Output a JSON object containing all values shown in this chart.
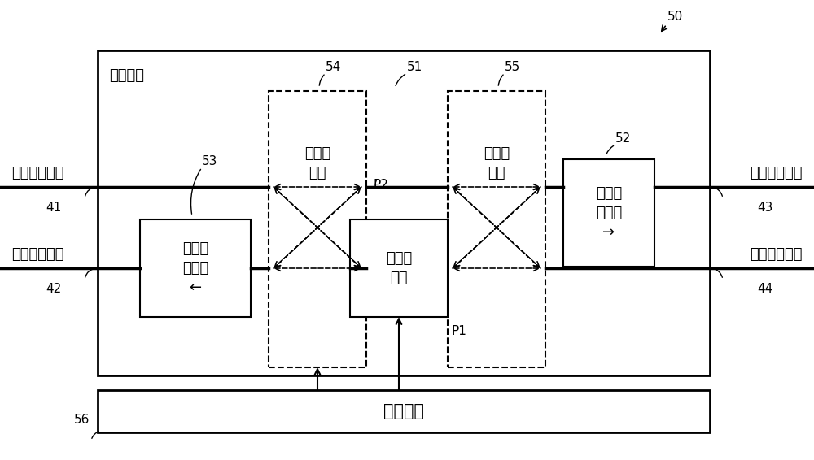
{
  "bg_color": "#ffffff",
  "line_color": "#000000",
  "fig_width": 10.0,
  "fig_height": 5.66,
  "label_50": "50",
  "label_56": "56",
  "label_54": "54",
  "label_55": "55",
  "label_51": "51",
  "label_52": "52",
  "label_53": "53",
  "label_41": "41",
  "label_42": "42",
  "label_43": "43",
  "label_44": "44",
  "label_P1": "P1",
  "label_P2": "P2",
  "text_amplifier": "光放大器",
  "text_control": "控制单元",
  "text_sw1": "第一光\n开关",
  "text_sw2": "第二光\n开关",
  "text_opt_elem": "光放大\n元件",
  "text_tx_iso": "发送侧\n隔离器\n→",
  "text_rx_iso": "接收侧\n隔离器\n←",
  "text_tx_in": "发送侧输入部",
  "text_tx_out": "发送侧输出部",
  "text_rx_out": "接收侧输出部",
  "text_rx_in": "接收侧输入部"
}
